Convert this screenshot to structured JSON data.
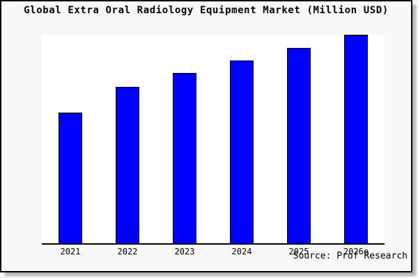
{
  "window": {
    "background_color": "#f7f7f7",
    "frame_border_color": "#000000",
    "frame_shadow_color": "#b4b4b4",
    "plot_background_color": "#ffffff"
  },
  "chart_data": {
    "type": "bar",
    "title": "Global Extra Oral Radiology Equipment Market (Million USD)",
    "categories": [
      "2021",
      "2022",
      "2023",
      "2024",
      "2025",
      "2026e"
    ],
    "values": [
      62.8,
      75.1,
      81.6,
      87.7,
      93.7,
      100
    ],
    "values_note": "relative index estimated from bar pixel heights; no y-axis scale or value labels are shown in the image; 2026e bar = 100 (fills full plot height)",
    "xlabel": "",
    "ylabel": "",
    "ylim": [
      0,
      100
    ],
    "grid": false,
    "y_axis_visible": false,
    "legend": null,
    "bar_color": "#0000ff",
    "bar_edge_color": "#000000",
    "axis_line_color": "#000000",
    "source": "Source: Prof Research"
  }
}
